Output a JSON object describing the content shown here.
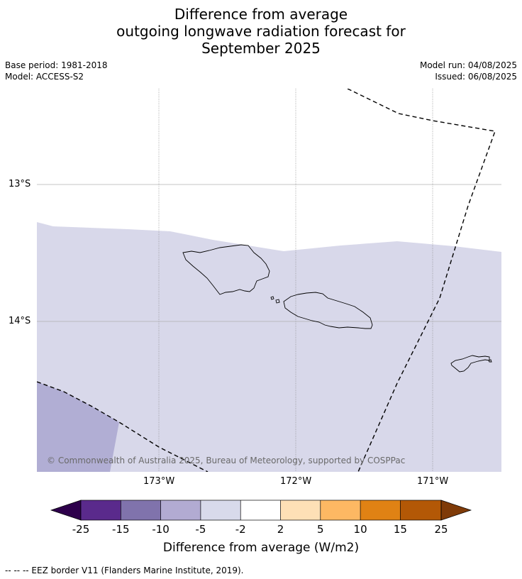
{
  "title": {
    "line1": "Difference from average",
    "line2": "outgoing longwave radiation forecast for",
    "line3": "September 2025"
  },
  "info": {
    "base_period": "Base period: 1981-2018",
    "model": "Model: ACCESS-S2",
    "model_run": "Model run: 04/08/2025",
    "issued": "Issued: 06/08/2025"
  },
  "map": {
    "lat_labels": [
      "13°S",
      "14°S"
    ],
    "lon_labels": [
      "173°W",
      "172°W",
      "171°W"
    ],
    "copyright": "© Commonwealth of Australia 2025, Bureau of Meteorology, supported by COSPPac",
    "colors": {
      "anomaly_light": "#d8d8ea",
      "anomaly_medium": "#b1aed4",
      "no_data": "#ffffff"
    }
  },
  "colorbar": {
    "ticks": [
      "-25",
      "-15",
      "-10",
      "-5",
      "-2",
      "2",
      "5",
      "10",
      "15",
      "25"
    ],
    "colors": [
      "#2d004b",
      "#5a2a8c",
      "#8073ac",
      "#b2abd2",
      "#d8daeb",
      "#ffffff",
      "#fee0b6",
      "#fdb863",
      "#e08214",
      "#b35806",
      "#7f3b08"
    ],
    "label": "Difference from average (W/m2)"
  },
  "legend": {
    "eez": "-- -- -- EEZ border V11 (Flanders Marine Institute, 2019)."
  }
}
